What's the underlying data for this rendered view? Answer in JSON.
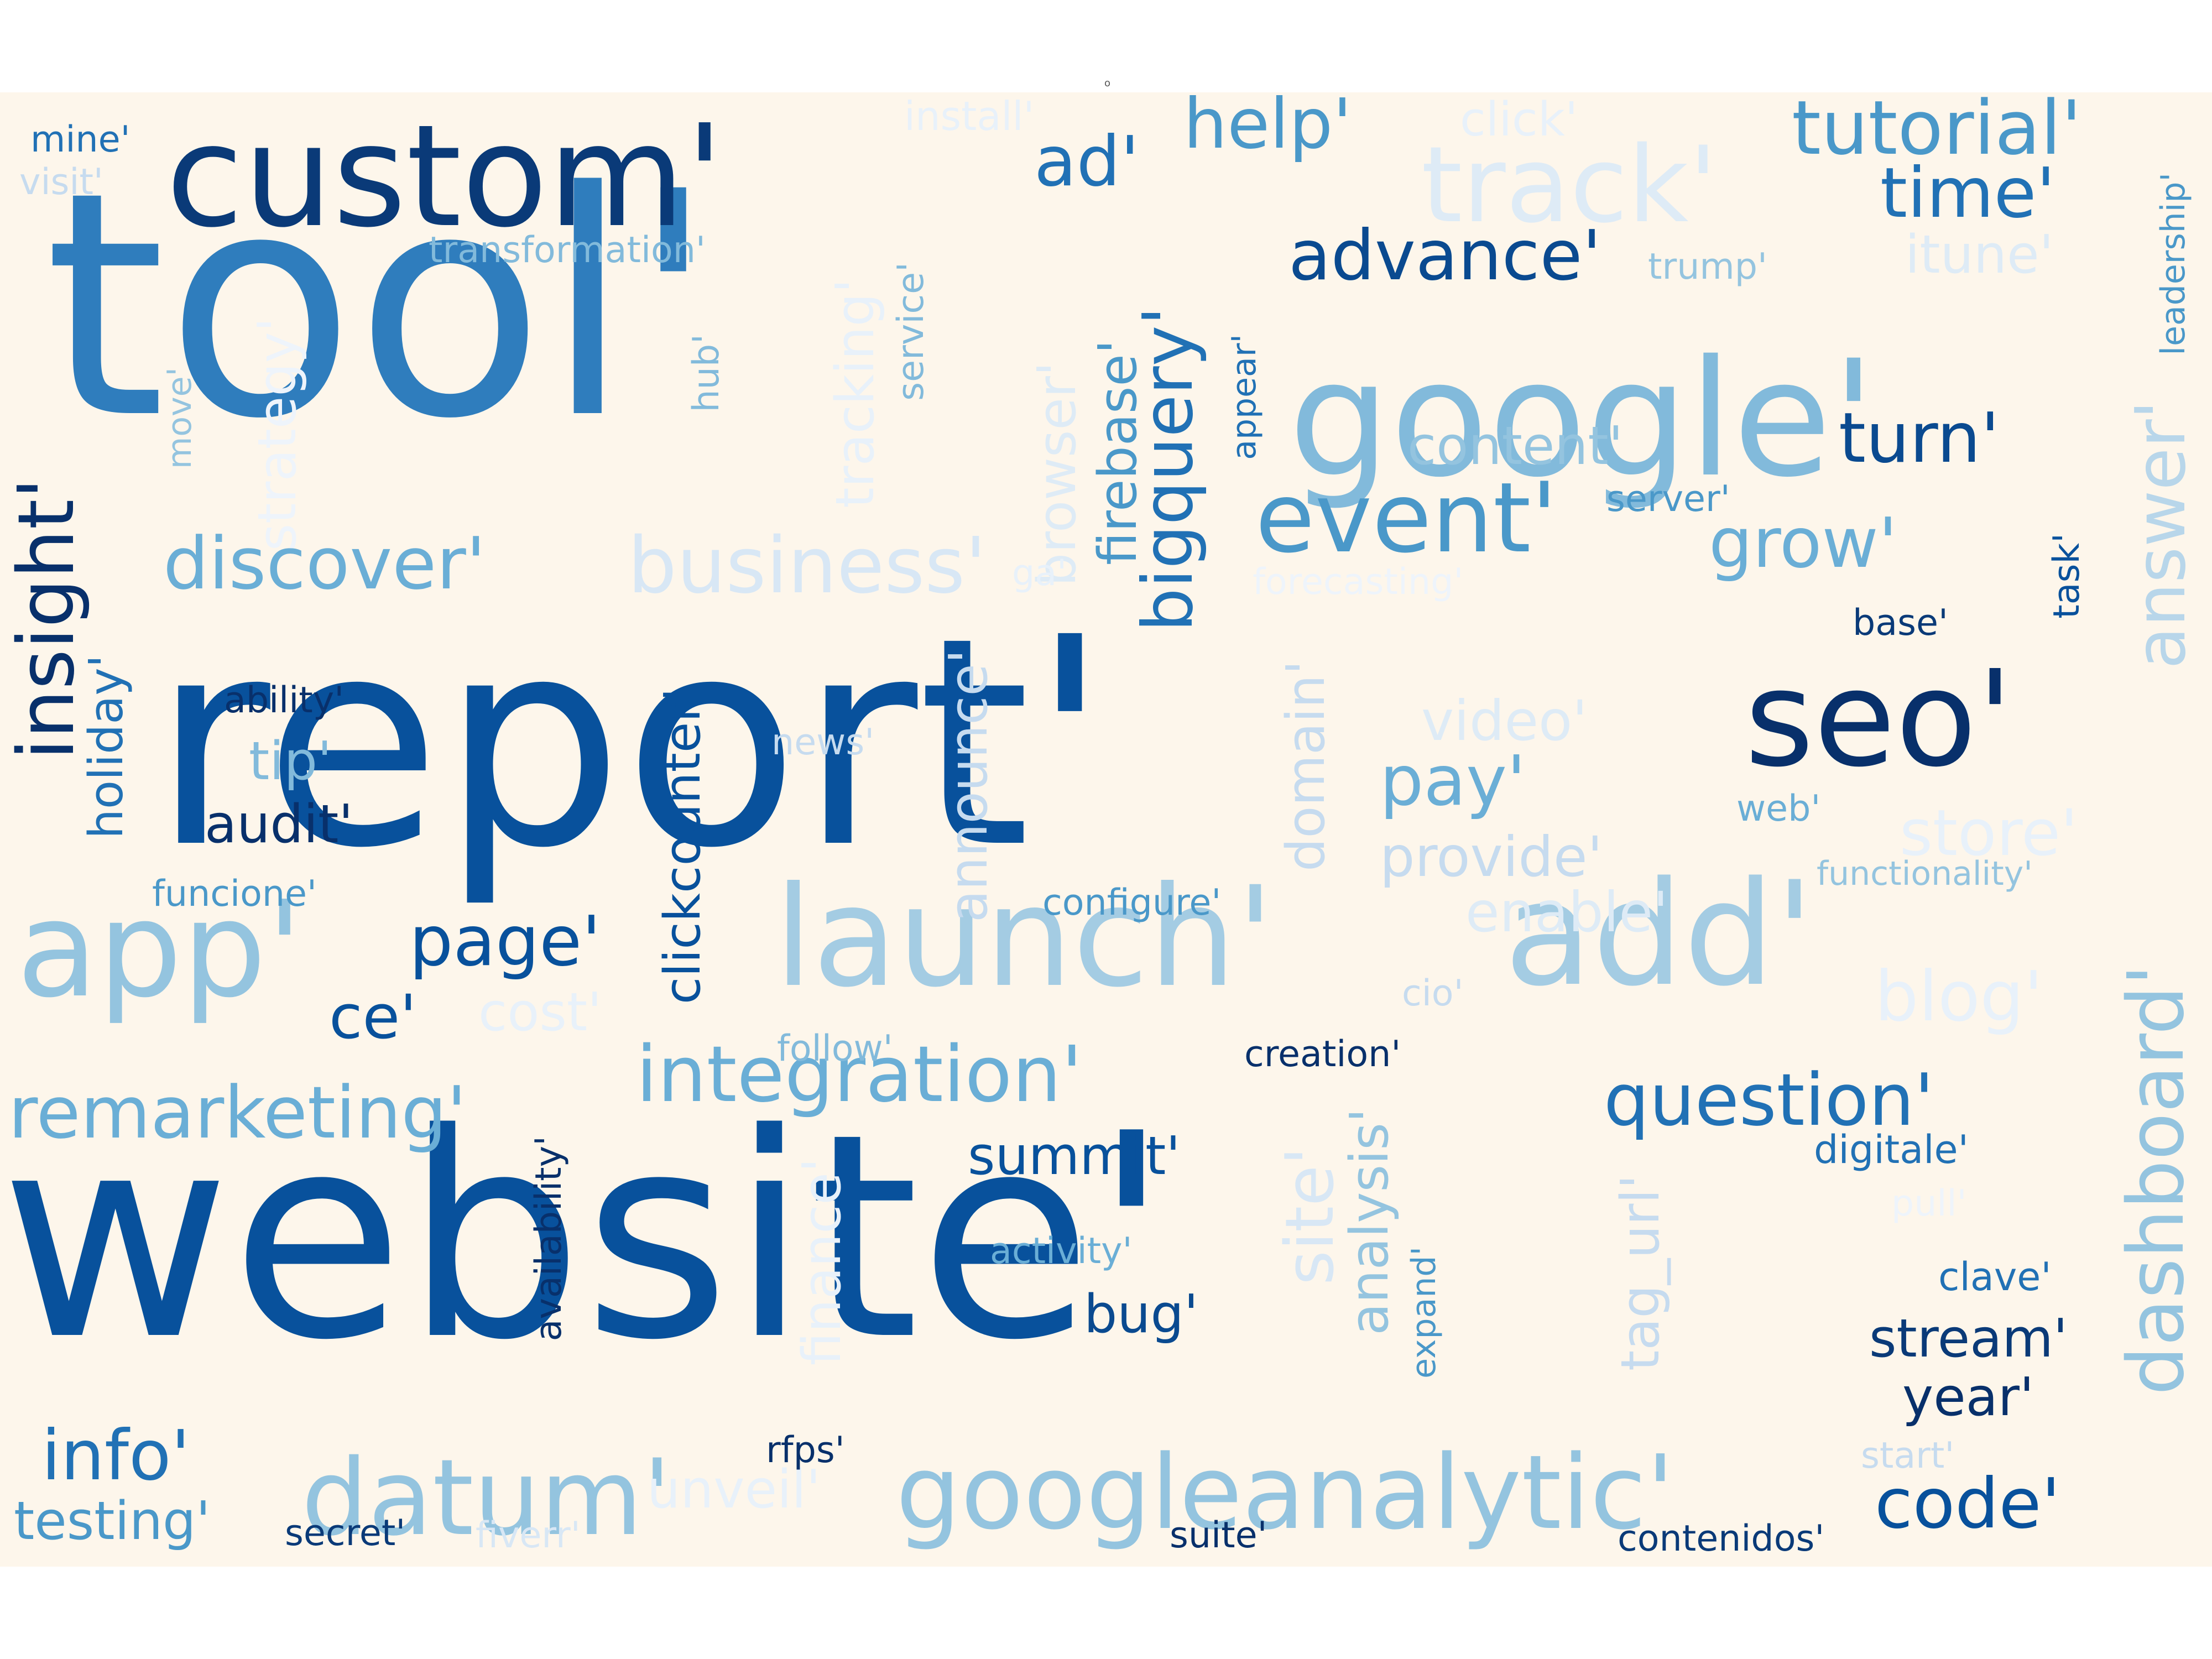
{
  "top_mark": "o",
  "background_color": "#fdf6eb",
  "words": [
    {
      "text": "website'",
      "color": "#08519c"
    },
    {
      "text": "report'",
      "color": "#08519c"
    },
    {
      "text": "tool'",
      "color": "#2f7dbd"
    },
    {
      "text": "google'",
      "color": "#82badb"
    },
    {
      "text": "custom'",
      "color": "#0a3a78"
    },
    {
      "text": "launch'",
      "color": "#a4cce3"
    },
    {
      "text": "add'",
      "color": "#a4cce3"
    },
    {
      "text": "app'",
      "color": "#94c4df"
    },
    {
      "text": "seo'",
      "color": "#08306b"
    },
    {
      "text": "googleanalytic'",
      "color": "#94c4df"
    },
    {
      "text": "datum'",
      "color": "#94c4df"
    },
    {
      "text": "track'",
      "color": "#deebf6"
    },
    {
      "text": "integration'",
      "color": "#6aaed6"
    },
    {
      "text": "dashboard'",
      "color": "#94c4df"
    },
    {
      "text": "remarketing'",
      "color": "#6aaed6"
    },
    {
      "text": "question'",
      "color": "#2171b5"
    },
    {
      "text": "event'",
      "color": "#4a98c9"
    },
    {
      "text": "insight'",
      "color": "#08306b"
    },
    {
      "text": "discover'",
      "color": "#6aaed6"
    },
    {
      "text": "business'",
      "color": "#d8e7f5"
    },
    {
      "text": "bigquery'",
      "color": "#2171b5"
    },
    {
      "text": "answer'",
      "color": "#b8d6ea"
    },
    {
      "text": "clickcounter'",
      "color": "#08519c"
    },
    {
      "text": "tutorial'",
      "color": "#4a98c9"
    },
    {
      "text": "advance'",
      "color": "#0a4a90"
    },
    {
      "text": "page'",
      "color": "#08519c"
    },
    {
      "text": "info'",
      "color": "#2171b5"
    },
    {
      "text": "code'",
      "color": "#08519c"
    },
    {
      "text": "help'",
      "color": "#4a98c9"
    },
    {
      "text": "time'",
      "color": "#2171b5"
    },
    {
      "text": "turn'",
      "color": "#0a4a90"
    },
    {
      "text": "grow'",
      "color": "#6aaed6"
    },
    {
      "text": "content'",
      "color": "#94c4df"
    },
    {
      "text": "pay'",
      "color": "#6aaed6"
    },
    {
      "text": "provide'",
      "color": "#c6dbef"
    },
    {
      "text": "stream'",
      "color": "#0a3a78"
    },
    {
      "text": "year'",
      "color": "#08306b"
    },
    {
      "text": "testing'",
      "color": "#4a98c9"
    },
    {
      "text": "ce'",
      "color": "#08519c"
    },
    {
      "text": "video'",
      "color": "#deebf6"
    },
    {
      "text": "store'",
      "color": "#e8f1fa"
    },
    {
      "text": "blog'",
      "color": "#e8f1fa"
    },
    {
      "text": "enable'",
      "color": "#deebf6"
    },
    {
      "text": "summit'",
      "color": "#08519c"
    },
    {
      "text": "ad'",
      "color": "#2171b5"
    },
    {
      "text": "audit'",
      "color": "#08306b"
    },
    {
      "text": "tip'",
      "color": "#82badb"
    },
    {
      "text": "cost'",
      "color": "#e8f1fa"
    },
    {
      "text": "unveil'",
      "color": "#e8f1fa"
    },
    {
      "text": "itune'",
      "color": "#deebf6"
    },
    {
      "text": "holiday'",
      "color": "#2171b5"
    },
    {
      "text": "firebase'",
      "color": "#4a98c9"
    },
    {
      "text": "browser'",
      "color": "#deebf6"
    },
    {
      "text": "tracking'",
      "color": "#e8f1fa"
    },
    {
      "text": "strategy'",
      "color": "#eef4fb"
    },
    {
      "text": "domain'",
      "color": "#c6dbef"
    },
    {
      "text": "announce'",
      "color": "#c6dbef"
    },
    {
      "text": "site'",
      "color": "#d8e7f5"
    },
    {
      "text": "analysis'",
      "color": "#94c4df"
    },
    {
      "text": "finance'",
      "color": "#e8f1fa"
    },
    {
      "text": "tag_url'",
      "color": "#c6dbef"
    },
    {
      "text": "availability'",
      "color": "#08306b"
    },
    {
      "text": "click'",
      "color": "#e8f1fa"
    },
    {
      "text": "install'",
      "color": "#e8f1fa"
    },
    {
      "text": "mine'",
      "color": "#2171b5"
    },
    {
      "text": "visit'",
      "color": "#c6dbef"
    },
    {
      "text": "transformation'",
      "color": "#82badb"
    },
    {
      "text": "trump'",
      "color": "#94c4df"
    },
    {
      "text": "leadership'",
      "color": "#4a98c9"
    },
    {
      "text": "service'",
      "color": "#82badb"
    },
    {
      "text": "hub'",
      "color": "#82badb"
    },
    {
      "text": "move'",
      "color": "#94c4df"
    },
    {
      "text": "appear'",
      "color": "#2171b5"
    },
    {
      "text": "server'",
      "color": "#4a98c9"
    },
    {
      "text": "forecasting'",
      "color": "#eef4fb"
    },
    {
      "text": "ga'",
      "color": "#e8f1fa"
    },
    {
      "text": "task'",
      "color": "#08519c"
    },
    {
      "text": "base'",
      "color": "#0a3a78"
    },
    {
      "text": "ability'",
      "color": "#08306b"
    },
    {
      "text": "news'",
      "color": "#c6dbef"
    },
    {
      "text": "web'",
      "color": "#6aaed6"
    },
    {
      "text": "functionality'",
      "color": "#94c4df"
    },
    {
      "text": "funcione'",
      "color": "#4a98c9"
    },
    {
      "text": "configure'",
      "color": "#4a98c9"
    },
    {
      "text": "cio'",
      "color": "#c6dbef"
    },
    {
      "text": "follow'",
      "color": "#82badb"
    },
    {
      "text": "creation'",
      "color": "#08306b"
    },
    {
      "text": "digitale'",
      "color": "#2171b5"
    },
    {
      "text": "pull'",
      "color": "#eef4fb"
    },
    {
      "text": "activity'",
      "color": "#6aaed6"
    },
    {
      "text": "expand'",
      "color": "#4a98c9"
    },
    {
      "text": "bug'",
      "color": "#0a4a90"
    },
    {
      "text": "clave'",
      "color": "#2171b5"
    },
    {
      "text": "rfps'",
      "color": "#08306b"
    },
    {
      "text": "start'",
      "color": "#c6dbef"
    },
    {
      "text": "secret'",
      "color": "#0a3a78"
    },
    {
      "text": "fiverr'",
      "color": "#d8e7f5"
    },
    {
      "text": "suite'",
      "color": "#08306b"
    },
    {
      "text": "contenidos'",
      "color": "#0a3a78"
    }
  ]
}
